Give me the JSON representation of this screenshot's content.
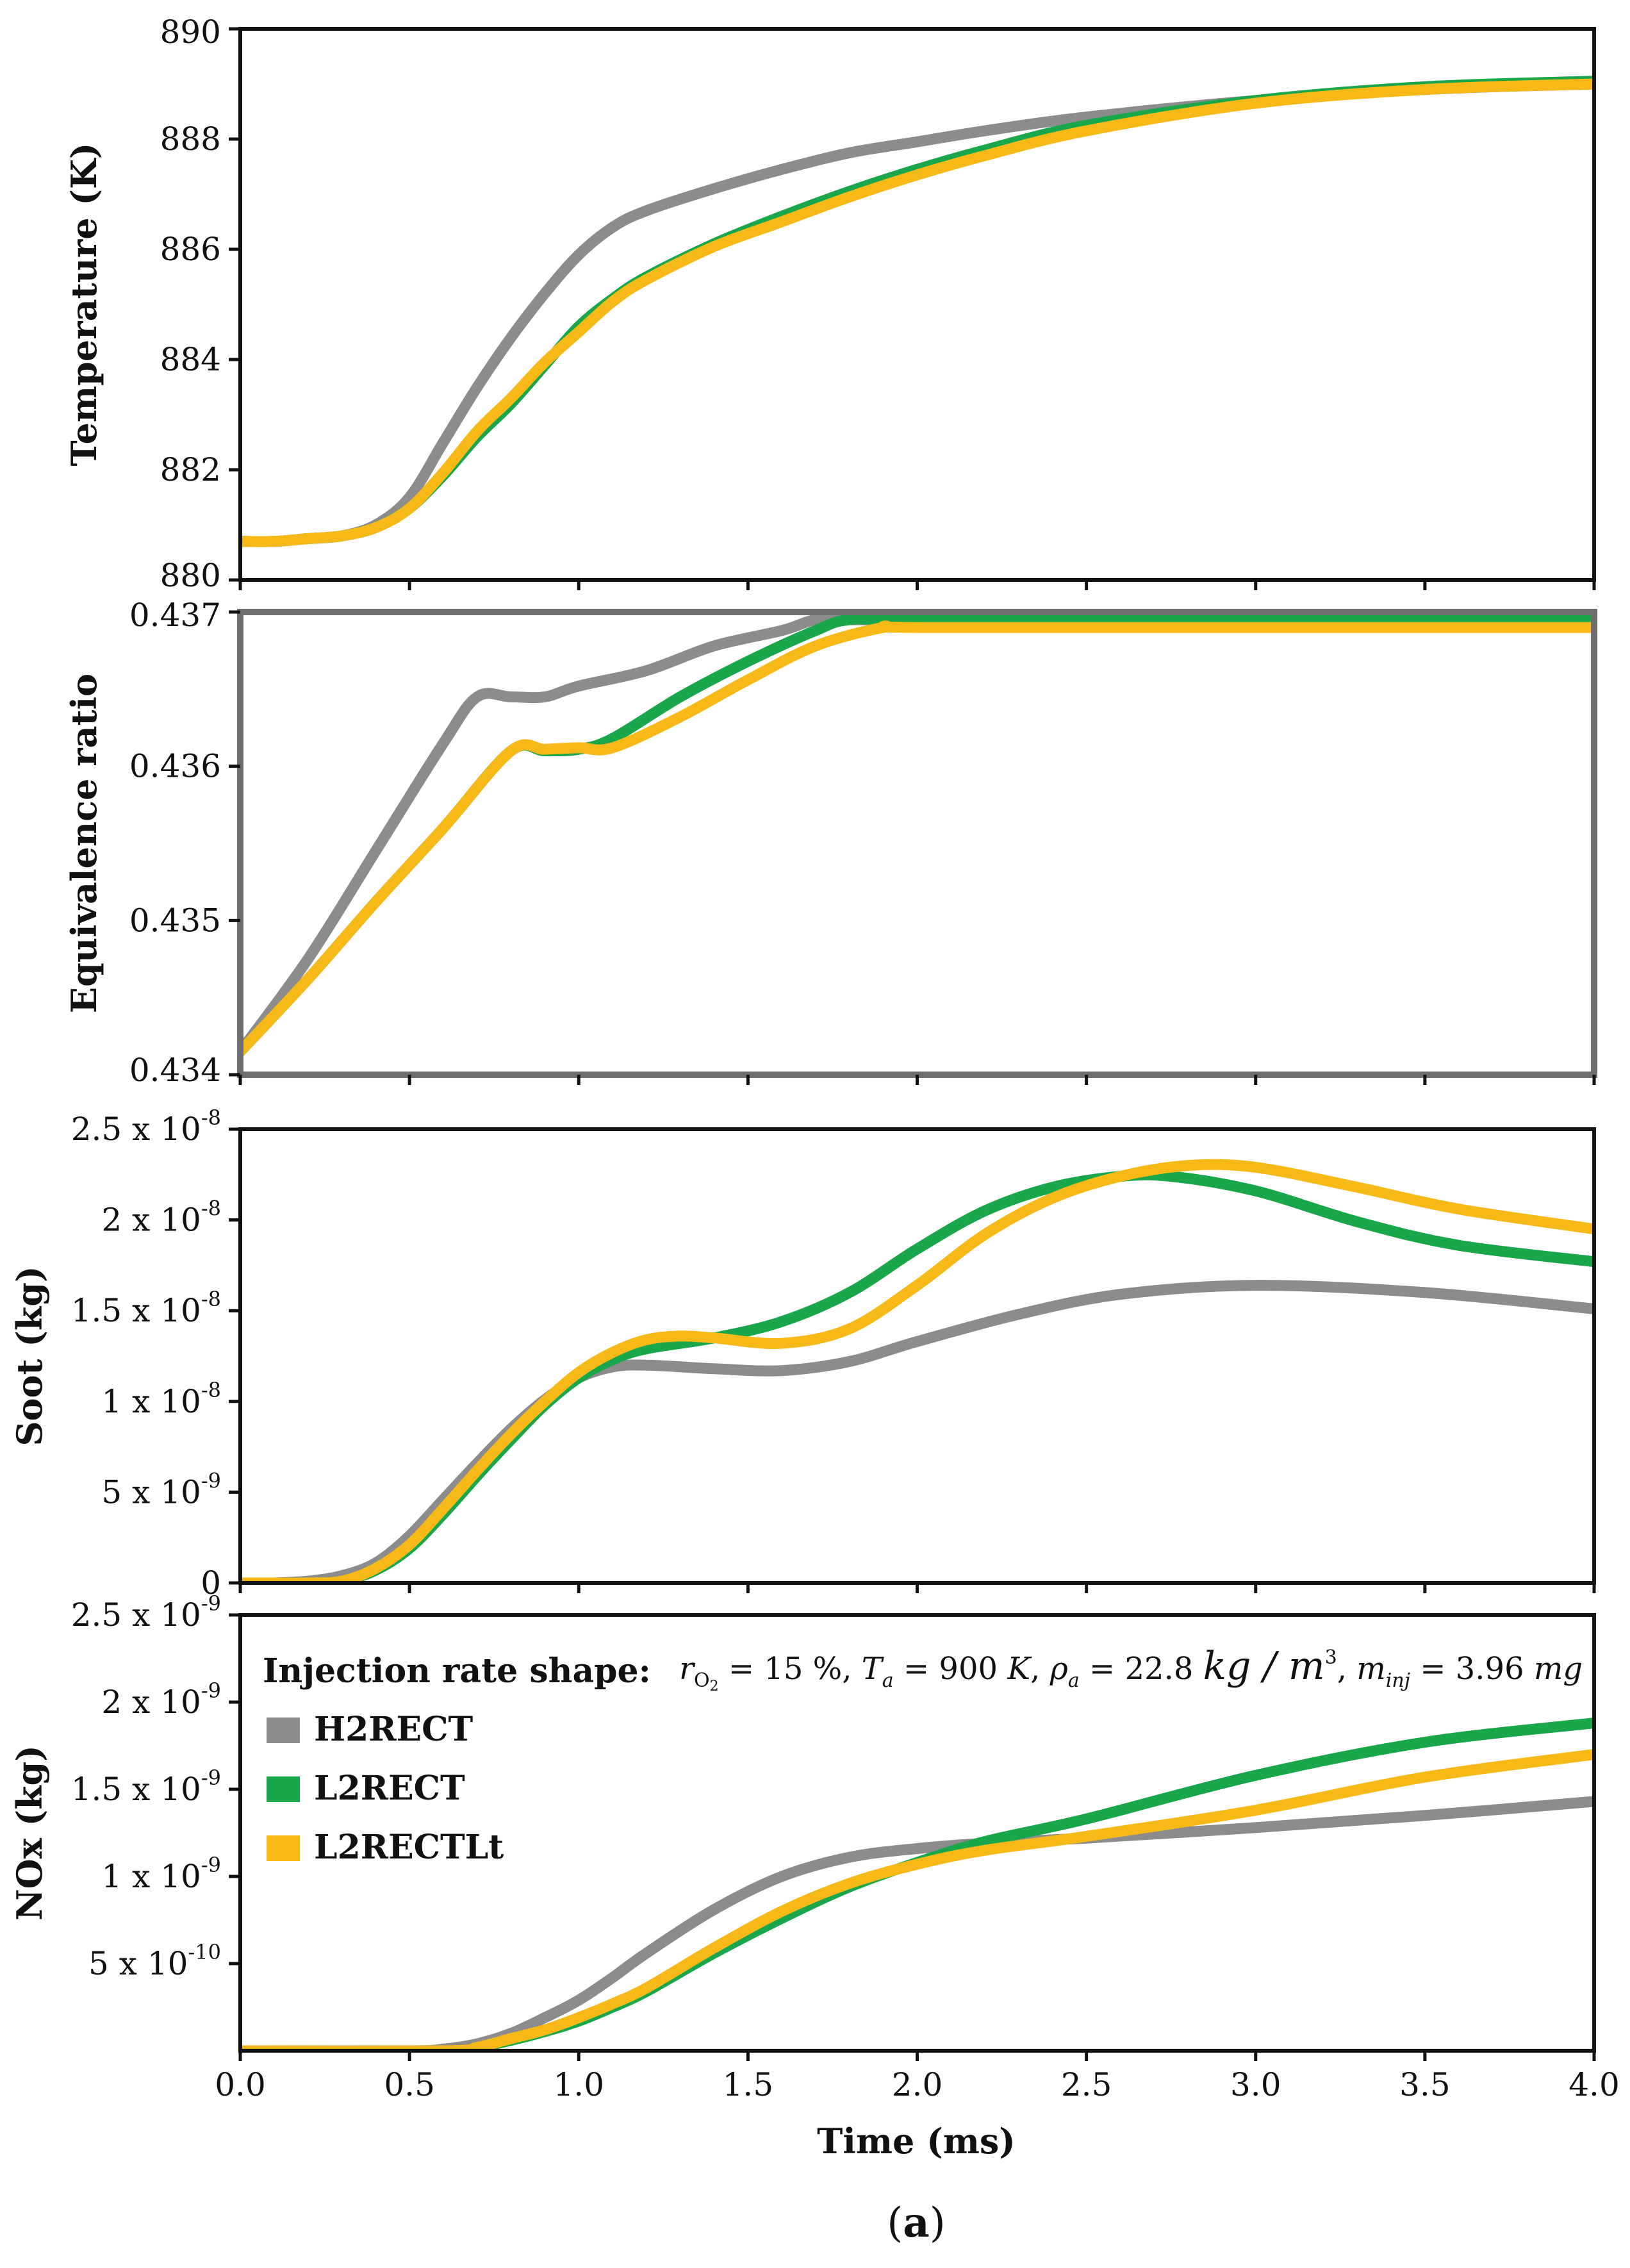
{
  "figure": {
    "caption_open": "(",
    "caption_letter": "a",
    "caption_close": ")",
    "xlabel": "Time (ms)"
  },
  "legend": {
    "title": "Injection rate shape:",
    "conditions": "r_O2 = 15 %, T_a = 900 K, ρ_a = 22.8 kg / m³, m_inj = 3.96 mg",
    "cond_r": "r",
    "cond_r_sub": "O",
    "cond_r_sub2": "2",
    "cond_r_val": " = 15 %, ",
    "cond_T": "T",
    "cond_T_sub": "a",
    "cond_T_val": " = 900 ",
    "cond_K": "K",
    "cond_rho": "ρ",
    "cond_rho_sub": "a",
    "cond_rho_val": " = 22.8 ",
    "cond_rho_unit": "kg / m",
    "cond_rho_sup": "3",
    "cond_m": "m",
    "cond_m_sub": "inj",
    "cond_m_val": " = 3.96 ",
    "cond_mg": "mg",
    "entries": [
      "H2RECT",
      "L2RECT",
      "L2RECTLt"
    ]
  },
  "colors": {
    "H2RECT": "#8c8c8c",
    "L2RECT": "#1aa64a",
    "L2RECTLt": "#f7b918"
  },
  "chart_data": [
    {
      "type": "line",
      "title": "",
      "xlabel": "",
      "ylabel": "Temperature (K)",
      "xlim": [
        0,
        4
      ],
      "ylim": [
        880,
        890
      ],
      "yticks": [
        880,
        882,
        884,
        886,
        888,
        890
      ],
      "ytick_labels": [
        "880",
        "882",
        "884",
        "886",
        "888",
        "890"
      ],
      "series": [
        {
          "name": "H2RECT",
          "x": [
            0,
            0.1,
            0.2,
            0.3,
            0.4,
            0.5,
            0.6,
            0.7,
            0.8,
            0.9,
            1.0,
            1.1,
            1.2,
            1.4,
            1.6,
            1.8,
            2.0,
            2.2,
            2.5,
            3.0,
            3.5,
            4.0
          ],
          "y": [
            880.7,
            880.7,
            880.75,
            880.8,
            881.0,
            881.5,
            882.5,
            883.5,
            884.4,
            885.2,
            885.9,
            886.4,
            886.7,
            887.1,
            887.45,
            887.75,
            887.95,
            888.15,
            888.4,
            888.7,
            888.9,
            889.0
          ]
        },
        {
          "name": "L2RECT",
          "x": [
            0,
            0.1,
            0.2,
            0.3,
            0.4,
            0.5,
            0.6,
            0.7,
            0.8,
            0.9,
            1.0,
            1.1,
            1.2,
            1.4,
            1.6,
            1.8,
            2.0,
            2.2,
            2.5,
            3.0,
            3.5,
            4.0
          ],
          "y": [
            880.7,
            880.7,
            880.75,
            880.8,
            880.95,
            881.3,
            881.9,
            882.6,
            883.2,
            883.9,
            884.6,
            885.1,
            885.5,
            886.1,
            886.6,
            887.05,
            887.45,
            887.8,
            888.25,
            888.7,
            888.95,
            889.05
          ]
        },
        {
          "name": "L2RECTLt",
          "x": [
            0,
            0.1,
            0.2,
            0.3,
            0.4,
            0.5,
            0.6,
            0.7,
            0.8,
            0.9,
            1.0,
            1.1,
            1.2,
            1.4,
            1.6,
            1.8,
            2.0,
            2.2,
            2.5,
            3.0,
            3.5,
            4.0
          ],
          "y": [
            880.7,
            880.7,
            880.75,
            880.8,
            880.95,
            881.3,
            881.95,
            882.7,
            883.3,
            883.95,
            884.5,
            885.05,
            885.45,
            886.05,
            886.5,
            886.95,
            887.35,
            887.7,
            888.15,
            888.65,
            888.9,
            889.0
          ]
        }
      ]
    },
    {
      "type": "line",
      "title": "",
      "xlabel": "",
      "ylabel": "Equivalence ratio",
      "xlim": [
        0,
        4
      ],
      "ylim": [
        0.434,
        0.437
      ],
      "yticks": [
        0.434,
        0.435,
        0.436,
        0.437
      ],
      "ytick_labels": [
        "0.434",
        "0.435",
        "0.436",
        "0.437"
      ],
      "series": [
        {
          "name": "H2RECT",
          "x": [
            0,
            0.2,
            0.4,
            0.6,
            0.7,
            0.8,
            0.9,
            1.0,
            1.2,
            1.4,
            1.6,
            1.7,
            1.8,
            2.0,
            3.0,
            4.0
          ],
          "y": [
            0.43415,
            0.43475,
            0.43545,
            0.43615,
            0.43645,
            0.43645,
            0.43645,
            0.43652,
            0.43662,
            0.43678,
            0.43688,
            0.43695,
            0.43695,
            0.43695,
            0.43695,
            0.43695
          ]
        },
        {
          "name": "L2RECT",
          "x": [
            0,
            0.2,
            0.4,
            0.6,
            0.8,
            0.9,
            1.0,
            1.1,
            1.3,
            1.5,
            1.7,
            1.8,
            2.0,
            3.0,
            4.0
          ],
          "y": [
            0.43415,
            0.43462,
            0.43512,
            0.4356,
            0.4361,
            0.4361,
            0.43611,
            0.43618,
            0.43645,
            0.43668,
            0.43688,
            0.43695,
            0.43695,
            0.43695,
            0.43695
          ]
        },
        {
          "name": "L2RECTLt",
          "x": [
            0,
            0.2,
            0.4,
            0.6,
            0.8,
            0.9,
            1.0,
            1.1,
            1.3,
            1.5,
            1.7,
            1.9,
            2.0,
            3.0,
            4.0
          ],
          "y": [
            0.43415,
            0.43462,
            0.43512,
            0.4356,
            0.4361,
            0.43611,
            0.43612,
            0.43612,
            0.43632,
            0.43656,
            0.43678,
            0.4369,
            0.4369,
            0.4369,
            0.4369
          ]
        }
      ]
    },
    {
      "type": "line",
      "title": "",
      "xlabel": "",
      "ylabel": "Soot (kg)",
      "xlim": [
        0,
        4
      ],
      "ylim": [
        0,
        2.5e-08
      ],
      "yticks": [
        0,
        5e-09,
        1e-08,
        1.5e-08,
        2e-08,
        2.5e-08
      ],
      "ytick_labels": [
        {
          "mant": "0",
          "exp": ""
        },
        {
          "mant": "5 x 10",
          "exp": "-9"
        },
        {
          "mant": "1 x 10",
          "exp": "-8"
        },
        {
          "mant": "1.5 x 10",
          "exp": "-8"
        },
        {
          "mant": "2 x 10",
          "exp": "-8"
        },
        {
          "mant": "2.5 x 10",
          "exp": "-8"
        }
      ],
      "series": [
        {
          "name": "H2RECT",
          "x": [
            0,
            0.1,
            0.2,
            0.3,
            0.4,
            0.5,
            0.6,
            0.7,
            0.8,
            0.9,
            1.0,
            1.1,
            1.2,
            1.4,
            1.6,
            1.8,
            2.0,
            2.3,
            2.6,
            3.0,
            3.5,
            4.0
          ],
          "y": [
            0.0,
            0.0,
            1e-10,
            4e-10,
            1.1e-09,
            2.6e-09,
            4.6e-09,
            6.6e-09,
            8.5e-09,
            1.01e-08,
            1.13e-08,
            1.19e-08,
            1.2e-08,
            1.18e-08,
            1.17e-08,
            1.22e-08,
            1.33e-08,
            1.48e-08,
            1.59e-08,
            1.64e-08,
            1.6e-08,
            1.51e-08
          ]
        },
        {
          "name": "L2RECT",
          "x": [
            0,
            0.1,
            0.2,
            0.3,
            0.4,
            0.5,
            0.6,
            0.7,
            0.8,
            0.9,
            1.0,
            1.1,
            1.2,
            1.4,
            1.6,
            1.8,
            2.0,
            2.2,
            2.4,
            2.6,
            2.75,
            3.0,
            3.3,
            3.6,
            4.0
          ],
          "y": [
            0.0,
            0.0,
            0.0,
            1e-10,
            7e-10,
            1.9e-09,
            3.8e-09,
            5.9e-09,
            7.9e-09,
            9.8e-09,
            1.13e-08,
            1.23e-08,
            1.29e-08,
            1.35e-08,
            1.44e-08,
            1.6e-08,
            1.84e-08,
            2.05e-08,
            2.18e-08,
            2.24e-08,
            2.24e-08,
            2.16e-08,
            1.99e-08,
            1.86e-08,
            1.77e-08
          ]
        },
        {
          "name": "L2RECTLt",
          "x": [
            0,
            0.1,
            0.2,
            0.3,
            0.4,
            0.5,
            0.6,
            0.7,
            0.8,
            0.9,
            1.0,
            1.1,
            1.2,
            1.3,
            1.4,
            1.6,
            1.8,
            2.0,
            2.2,
            2.4,
            2.6,
            2.8,
            3.0,
            3.3,
            3.6,
            4.0
          ],
          "y": [
            0.0,
            0.0,
            0.0,
            1e-10,
            8e-10,
            2.1e-09,
            4.1e-09,
            6.2e-09,
            8.2e-09,
            1e-08,
            1.16e-08,
            1.27e-08,
            1.34e-08,
            1.36e-08,
            1.35e-08,
            1.32e-08,
            1.4e-08,
            1.64e-08,
            1.92e-08,
            2.12e-08,
            2.24e-08,
            2.3e-08,
            2.29e-08,
            2.18e-08,
            2.06e-08,
            1.95e-08
          ]
        }
      ]
    },
    {
      "type": "line",
      "title": "",
      "xlabel": "Time (ms)",
      "ylabel": "NOx (kg)",
      "xlim": [
        0,
        4
      ],
      "ylim": [
        0,
        2.5e-09
      ],
      "yticks": [
        5e-10,
        1e-09,
        1.5e-09,
        2e-09,
        2.5e-09
      ],
      "ytick_labels": [
        {
          "mant": "5 x 10",
          "exp": "-10"
        },
        {
          "mant": "1 x 10",
          "exp": "-9"
        },
        {
          "mant": "1.5 x 10",
          "exp": "-9"
        },
        {
          "mant": "2 x 10",
          "exp": "-9"
        },
        {
          "mant": "2.5 x 10",
          "exp": "-9"
        }
      ],
      "xticks": [
        0,
        0.5,
        1,
        1.5,
        2,
        2.5,
        3,
        3.5,
        4
      ],
      "xtick_labels": [
        "0.0",
        "0.5",
        "1.0",
        "1.5",
        "2.0",
        "2.5",
        "3.0",
        "3.5",
        "4.0"
      ],
      "series": [
        {
          "name": "H2RECT",
          "x": [
            0,
            0.5,
            0.6,
            0.7,
            0.8,
            0.9,
            1.0,
            1.1,
            1.2,
            1.4,
            1.6,
            1.8,
            2.0,
            2.2,
            2.5,
            3.0,
            3.5,
            4.0
          ],
          "y": [
            0.0,
            0.0,
            1e-11,
            4e-11,
            1e-10,
            1.9e-10,
            2.9e-10,
            4.2e-10,
            5.6e-10,
            8.1e-10,
            1e-09,
            1.11e-09,
            1.16e-09,
            1.19e-09,
            1.22e-09,
            1.28e-09,
            1.35e-09,
            1.43e-09
          ]
        },
        {
          "name": "L2RECT",
          "x": [
            0,
            0.6,
            0.7,
            0.8,
            0.9,
            1.0,
            1.1,
            1.2,
            1.4,
            1.6,
            1.8,
            2.0,
            2.2,
            2.5,
            3.0,
            3.5,
            4.0
          ],
          "y": [
            0.0,
            0.0,
            2e-11,
            6e-11,
            1.1e-10,
            1.7e-10,
            2.5e-10,
            3.4e-10,
            5.6e-10,
            7.6e-10,
            9.4e-10,
            1.08e-09,
            1.2e-09,
            1.33e-09,
            1.58e-09,
            1.77e-09,
            1.88e-09
          ]
        },
        {
          "name": "L2RECTLt",
          "x": [
            0,
            0.6,
            0.7,
            0.8,
            0.9,
            1.0,
            1.1,
            1.2,
            1.4,
            1.6,
            1.8,
            2.0,
            2.2,
            2.5,
            3.0,
            3.5,
            4.0
          ],
          "y": [
            0.0,
            0.0,
            2e-11,
            7e-11,
            1.2e-10,
            1.9e-10,
            2.7e-10,
            3.6e-10,
            5.9e-10,
            8e-10,
            9.6e-10,
            1.07e-09,
            1.15e-09,
            1.23e-09,
            1.38e-09,
            1.57e-09,
            1.7e-09
          ]
        }
      ]
    }
  ]
}
